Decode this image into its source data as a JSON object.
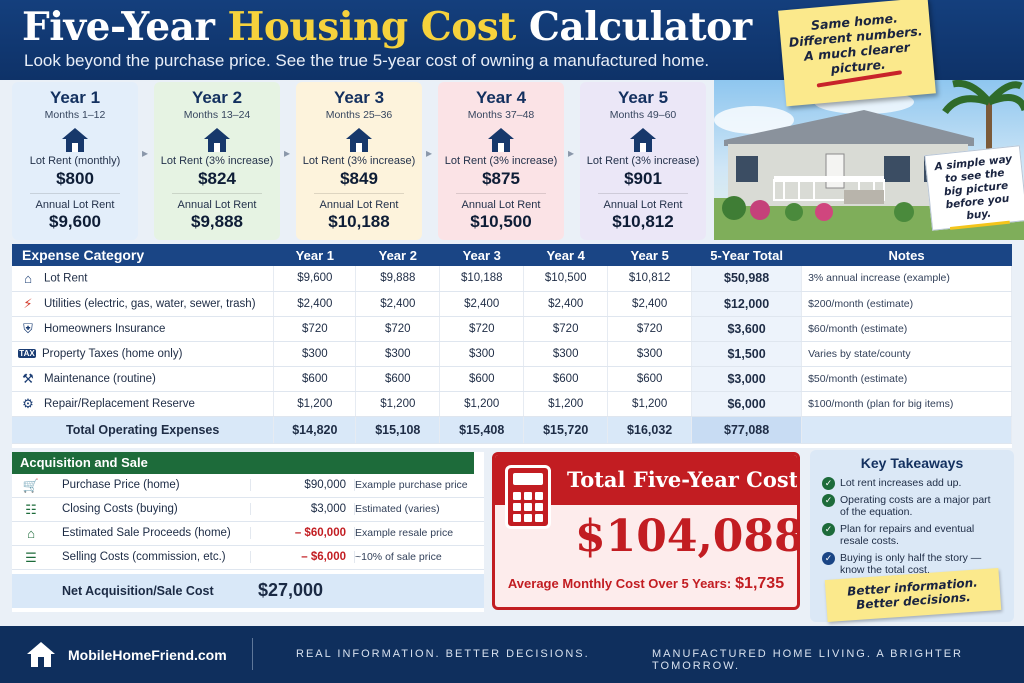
{
  "header": {
    "title_part1": "Five-Year",
    "title_highlight": "Housing Cost",
    "title_part2": "Calculator",
    "subtitle": "Look beyond the purchase price. See the true 5-year cost of owning a manufactured home."
  },
  "sticky_note": {
    "line1": "Same home.",
    "line2": "Different numbers.",
    "line3": "A much clearer",
    "line4": "picture."
  },
  "photo_callout": {
    "line1": "A simple way",
    "line2": "to see the",
    "line3": "big picture",
    "line4": "before you buy."
  },
  "years": [
    {
      "title": "Year 1",
      "months": "Months 1–12",
      "lot_label": "Lot Rent (monthly)",
      "lot_value": "$800",
      "annual_label": "Annual Lot Rent",
      "annual_value": "$9,600"
    },
    {
      "title": "Year 2",
      "months": "Months 13–24",
      "lot_label": "Lot Rent (3% increase)",
      "lot_value": "$824",
      "annual_label": "Annual Lot Rent",
      "annual_value": "$9,888"
    },
    {
      "title": "Year 3",
      "months": "Months 25–36",
      "lot_label": "Lot Rent (3% increase)",
      "lot_value": "$849",
      "annual_label": "Annual Lot Rent",
      "annual_value": "$10,188"
    },
    {
      "title": "Year 4",
      "months": "Months 37–48",
      "lot_label": "Lot Rent (3% increase)",
      "lot_value": "$875",
      "annual_label": "Annual Lot Rent",
      "annual_value": "$10,500"
    },
    {
      "title": "Year 5",
      "months": "Months 49–60",
      "lot_label": "Lot Rent (3% increase)",
      "lot_value": "$901",
      "annual_label": "Annual Lot Rent",
      "annual_value": "$10,812"
    }
  ],
  "year_colors": [
    "#e3eefa",
    "#e6f3e3",
    "#fdf3dc",
    "#fbe3e6",
    "#ebe7f7"
  ],
  "expenses": {
    "headers": [
      "Expense Category",
      "Year 1",
      "Year 2",
      "Year 3",
      "Year 4",
      "Year 5",
      "5-Year Total",
      "Notes"
    ],
    "rows": [
      {
        "icon": "house-icon",
        "name": "Lot Rent",
        "y1": "$9,600",
        "y2": "$9,888",
        "y3": "$10,188",
        "y4": "$10,500",
        "y5": "$10,812",
        "total": "$50,988",
        "note": "3% annual increase (example)"
      },
      {
        "icon": "lightning-icon",
        "name": "Utilities (electric, gas, water, sewer, trash)",
        "y1": "$2,400",
        "y2": "$2,400",
        "y3": "$2,400",
        "y4": "$2,400",
        "y5": "$2,400",
        "total": "$12,000",
        "note": "$200/month (estimate)"
      },
      {
        "icon": "shield-icon",
        "name": "Homeowners Insurance",
        "y1": "$720",
        "y2": "$720",
        "y3": "$720",
        "y4": "$720",
        "y5": "$720",
        "total": "$3,600",
        "note": "$60/month (estimate)"
      },
      {
        "icon": "tax-icon",
        "name": "Property Taxes (home only)",
        "y1": "$300",
        "y2": "$300",
        "y3": "$300",
        "y4": "$300",
        "y5": "$300",
        "total": "$1,500",
        "note": "Varies by state/county"
      },
      {
        "icon": "wrench-icon",
        "name": "Maintenance (routine)",
        "y1": "$600",
        "y2": "$600",
        "y3": "$600",
        "y4": "$600",
        "y5": "$600",
        "total": "$3,000",
        "note": "$50/month (estimate)"
      },
      {
        "icon": "gear-icon",
        "name": "Repair/Replacement Reserve",
        "y1": "$1,200",
        "y2": "$1,200",
        "y3": "$1,200",
        "y4": "$1,200",
        "y5": "$1,200",
        "total": "$6,000",
        "note": "$100/month (plan for big items)"
      }
    ],
    "total_row": {
      "name": "Total Operating Expenses",
      "y1": "$14,820",
      "y2": "$15,108",
      "y3": "$15,408",
      "y4": "$15,720",
      "y5": "$16,032",
      "total": "$77,088"
    }
  },
  "acquisition": {
    "title": "Acquisition and Sale",
    "rows": [
      {
        "icon": "cart-icon",
        "name": "Purchase Price (home)",
        "value": "$90,000",
        "note": "Example purchase price",
        "negative": false
      },
      {
        "icon": "document-icon",
        "name": "Closing Costs (buying)",
        "value": "$3,000",
        "note": "Estimated (varies)",
        "negative": false
      },
      {
        "icon": "home-money-icon",
        "name": "Estimated Sale Proceeds (home)",
        "value": "– $60,000",
        "note": "Example resale price",
        "negative": true
      },
      {
        "icon": "calculator-doc-icon",
        "name": "Selling Costs (commission, etc.)",
        "value": "– $6,000",
        "note": "~10% of sale price",
        "negative": true
      }
    ],
    "net_label": "Net Acquisition/Sale Cost",
    "net_value": "$27,000"
  },
  "total_cost": {
    "title": "Total Five-Year Cost",
    "value": "$104,088",
    "avg_label": "Average Monthly Cost Over 5 Years:",
    "avg_value": "$1,735"
  },
  "takeaways": {
    "title": "Key Takeaways",
    "items": [
      "Lot rent increases add up.",
      "Operating costs are a major part of the equation.",
      "Plan for repairs and eventual resale costs.",
      "Buying is only half the story — know the total cost."
    ],
    "note_line1": "Better information.",
    "note_line2": "Better decisions."
  },
  "footer": {
    "site": "MobileHomeFriend.com",
    "tagline1": "REAL INFORMATION. BETTER DECISIONS.",
    "tagline2": "MANUFACTURED HOME LIVING. A BRIGHTER TOMORROW."
  },
  "colors": {
    "navy": "#143f7d",
    "accent_yellow": "#f6d23c",
    "red": "#c21d22",
    "green": "#1d6b3a"
  }
}
